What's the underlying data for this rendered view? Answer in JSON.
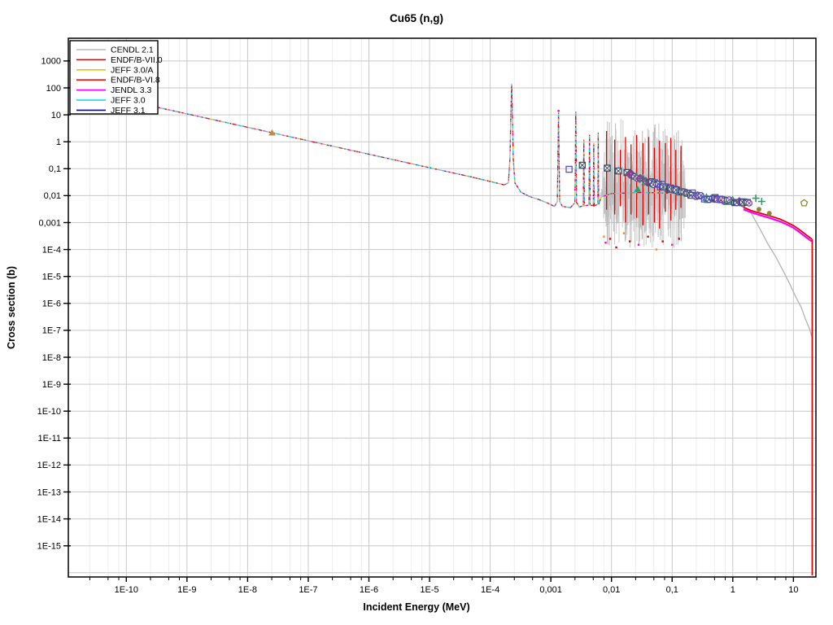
{
  "chart_data": {
    "type": "line",
    "title": "Cu65 (n,g)",
    "title_color": "#0000cc",
    "xlabel": "Incident Energy (MeV)",
    "ylabel": "Cross section (b)",
    "x_scale": "log",
    "y_scale": "log",
    "x_range": [
      1.1e-11,
      23.5
    ],
    "y_range": [
      7e-17,
      7000
    ],
    "grid": "on",
    "legend_position": "top-left",
    "x_ticks": [
      {
        "label": "1E-10",
        "value": 1e-10
      },
      {
        "label": "1E-9",
        "value": 1e-09
      },
      {
        "label": "1E-8",
        "value": 1e-08
      },
      {
        "label": "1E-7",
        "value": 1e-07
      },
      {
        "label": "1E-6",
        "value": 1e-06
      },
      {
        "label": "1E-5",
        "value": 1e-05
      },
      {
        "label": "1E-4",
        "value": 0.0001
      },
      {
        "label": "0,001",
        "value": 0.001
      },
      {
        "label": "0,01",
        "value": 0.01
      },
      {
        "label": "0,1",
        "value": 0.1
      },
      {
        "label": "1",
        "value": 1
      },
      {
        "label": "10",
        "value": 10
      }
    ],
    "y_ticks": [
      {
        "label": "1000",
        "value": 1000
      },
      {
        "label": "100",
        "value": 100
      },
      {
        "label": "10",
        "value": 10
      },
      {
        "label": "1",
        "value": 1
      },
      {
        "label": "0,1",
        "value": 0.1
      },
      {
        "label": "0,01",
        "value": 0.01
      },
      {
        "label": "0,001",
        "value": 0.001
      },
      {
        "label": "1E-4",
        "value": 0.0001
      },
      {
        "label": "1E-5",
        "value": 1e-05
      },
      {
        "label": "1E-6",
        "value": 1e-06
      },
      {
        "label": "1E-7",
        "value": 1e-07
      },
      {
        "label": "1E-8",
        "value": 1e-08
      },
      {
        "label": "1E-9",
        "value": 1e-09
      },
      {
        "label": "1E-10",
        "value": 1e-10
      },
      {
        "label": "1E-11",
        "value": 1e-11
      },
      {
        "label": "1E-12",
        "value": 1e-12
      },
      {
        "label": "1E-13",
        "value": 1e-13
      },
      {
        "label": "1E-14",
        "value": 1e-14
      },
      {
        "label": "1E-15",
        "value": 1e-15
      }
    ],
    "minor_multipliers": [
      2.5,
      5,
      7.5
    ],
    "series": [
      {
        "name": "CENDL 2.1",
        "color": "#b8b8b8"
      },
      {
        "name": "ENDF/B-VII.0",
        "color": "#e60000"
      },
      {
        "name": "JEFF 3.0/A",
        "color": "#ffb800"
      },
      {
        "name": "ENDF/B-VI.8",
        "color": "#f01010"
      },
      {
        "name": "JENDL 3.3",
        "color": "#ff00ff"
      },
      {
        "name": "JEFF 3.0",
        "color": "#00dcdc"
      },
      {
        "name": "JEFF 3.1",
        "color": "#0000cd"
      }
    ],
    "smooth_curve": {
      "color": "#b4b4b4",
      "points": [
        [
          1.1e-11,
          104
        ],
        [
          1e-10,
          34.5
        ],
        [
          1e-09,
          10.9
        ],
        [
          1e-08,
          3.45
        ],
        [
          2.53e-08,
          2.17
        ],
        [
          1e-07,
          1.09
        ],
        [
          1e-06,
          0.345
        ],
        [
          1e-05,
          0.109
        ],
        [
          5e-05,
          0.0487
        ],
        [
          0.00012,
          0.0305
        ],
        [
          0.00017,
          0.025
        ],
        [
          0.0002,
          0.03
        ],
        [
          0.000212,
          0.25
        ],
        [
          0.00022,
          15
        ],
        [
          0.000226,
          140
        ],
        [
          0.000232,
          15
        ],
        [
          0.00024,
          0.25
        ],
        [
          0.000255,
          0.03
        ],
        [
          0.00032,
          0.0135
        ],
        [
          0.00045,
          0.0092
        ],
        [
          0.00065,
          0.007
        ],
        [
          0.0009,
          0.0052
        ],
        [
          0.00115,
          0.004
        ],
        [
          0.00128,
          0.006
        ],
        [
          0.00134,
          12
        ],
        [
          0.0014,
          0.006
        ],
        [
          0.00155,
          0.004
        ],
        [
          0.0021,
          0.0036
        ],
        [
          0.0025,
          0.0055
        ],
        [
          0.00258,
          13
        ],
        [
          0.00266,
          0.0055
        ],
        [
          0.00295,
          0.0038
        ],
        [
          0.00342,
          0.0042
        ],
        [
          0.0035,
          1.2
        ],
        [
          0.00358,
          0.0042
        ],
        [
          0.00425,
          0.0045
        ],
        [
          0.00435,
          1.8
        ],
        [
          0.00445,
          0.0045
        ],
        [
          0.005,
          0.0042
        ],
        [
          0.0051,
          0.9
        ],
        [
          0.0052,
          0.0042
        ],
        [
          0.00595,
          0.0048
        ],
        [
          0.00605,
          2.2
        ],
        [
          0.00615,
          0.0048
        ],
        [
          0.0068,
          0.009
        ],
        [
          0.01,
          0.012
        ],
        [
          0.03,
          0.013
        ],
        [
          0.08,
          0.0125
        ],
        [
          0.16,
          0.0122
        ],
        [
          0.25,
          0.01
        ],
        [
          0.4,
          0.0082
        ],
        [
          0.7,
          0.0063
        ],
        [
          1.0,
          0.0051
        ],
        [
          1.5,
          0.0038
        ],
        [
          2.0,
          0.0028
        ]
      ]
    },
    "overlay_dashes": [
      {
        "color": "#e60000",
        "width": 1.2,
        "dash": "2 9",
        "offset": 0
      },
      {
        "color": "#ffb800",
        "width": 1.2,
        "dash": "2 12",
        "offset": 3
      },
      {
        "color": "#ff00ff",
        "width": 1.2,
        "dash": "2 10",
        "offset": 6
      },
      {
        "color": "#00dcdc",
        "width": 1.2,
        "dash": "3 13",
        "offset": 9
      },
      {
        "color": "#0000cd",
        "width": 1.0,
        "dash": "1 17",
        "offset": 12
      },
      {
        "color": "#e60000",
        "width": 1.2,
        "dash": "2 15",
        "offset": 14
      }
    ],
    "resonance_forest": {
      "e_min": 0.0068,
      "e_max": 0.165,
      "count": 215,
      "center_sigma_left": 0.0125,
      "center_sigma_right": 0.011,
      "color": "#c3c3c3",
      "color2": "#b0b0b0",
      "seed": 7
    },
    "red_spikes": [
      [
        0.0083,
        2.5,
        0.003
      ],
      [
        0.0113,
        1.2,
        0.002
      ],
      [
        0.014,
        0.5,
        0.004
      ],
      [
        0.017,
        1.5,
        0.001
      ],
      [
        0.021,
        0.8,
        0.002
      ],
      [
        0.026,
        1.8,
        0.0015
      ],
      [
        0.033,
        0.9,
        0.0008
      ],
      [
        0.041,
        1.5,
        0.002
      ],
      [
        0.051,
        0.6,
        0.001
      ],
      [
        0.062,
        1.1,
        0.0006
      ],
      [
        0.077,
        0.9,
        0.0025
      ],
      [
        0.095,
        1.4,
        0.0012
      ],
      [
        0.115,
        0.5,
        0.003
      ],
      [
        0.14,
        0.7,
        0.0035
      ]
    ],
    "forest_dots": [
      [
        0.0075,
        0.0003,
        "#ff9000"
      ],
      [
        0.008,
        0.00018,
        "#ff00ff"
      ],
      [
        0.0095,
        0.00025,
        "#e60000"
      ],
      [
        0.012,
        0.00012,
        "#e60000"
      ],
      [
        0.016,
        0.0004,
        "#ff9000"
      ],
      [
        0.02,
        0.0002,
        "#e60000"
      ],
      [
        0.028,
        0.00015,
        "#ff00ff"
      ],
      [
        0.04,
        0.0003,
        "#e60000"
      ],
      [
        0.055,
        0.0001,
        "#ff9000"
      ],
      [
        0.07,
        0.0002,
        "#e60000"
      ],
      [
        0.1,
        0.00015,
        "#ff00ff"
      ],
      [
        0.13,
        0.00025,
        "#e60000"
      ]
    ],
    "cendl_tail": {
      "color": "#b4b4b4",
      "points": [
        [
          1.7,
          0.0031
        ],
        [
          2.0,
          0.0023
        ],
        [
          2.75,
          0.00063
        ],
        [
          3.8,
          0.00016
        ],
        [
          5.2,
          5e-05
        ],
        [
          7,
          1.4e-05
        ],
        [
          9,
          4.5e-06
        ],
        [
          11,
          1.7e-06
        ],
        [
          13.5,
          7e-07
        ],
        [
          16,
          2.4e-07
        ],
        [
          18.5,
          1.1e-07
        ],
        [
          20.5,
          5e-08
        ]
      ]
    },
    "magenta_tail": {
      "color": "#ff00ff",
      "points": [
        [
          1.5,
          0.0031
        ],
        [
          2,
          0.0024
        ],
        [
          3,
          0.0018
        ],
        [
          4,
          0.0015
        ],
        [
          6,
          0.0011
        ],
        [
          8,
          0.00083
        ],
        [
          10,
          0.00064
        ],
        [
          13,
          0.00042
        ],
        [
          16,
          0.00029
        ],
        [
          19,
          0.00022
        ],
        [
          20.3,
          0.0002
        ]
      ]
    },
    "red_tail": {
      "color": "#e60000",
      "points": [
        [
          1.5,
          0.0037
        ],
        [
          2,
          0.0028
        ],
        [
          3,
          0.00215
        ],
        [
          4,
          0.0018
        ],
        [
          6,
          0.00135
        ],
        [
          8,
          0.001
        ],
        [
          10,
          0.00078
        ],
        [
          13,
          0.00052
        ],
        [
          16,
          0.00036
        ],
        [
          19,
          0.00027
        ],
        [
          20.4,
          0.00024
        ]
      ],
      "drop_energy": 20.4,
      "drop_bottom_sigma": 8e-17
    },
    "experimental": {
      "singles": [
        [
          2.53e-08,
          2.17,
          "tri-fill",
          "#b5914a"
        ],
        [
          0.002,
          0.095,
          "sq-open",
          "#5b4fc8"
        ],
        [
          0.0033,
          0.135,
          "sq-x",
          "#3f4e63"
        ],
        [
          0.0085,
          0.105,
          "sq-x",
          "#3f4e63"
        ],
        [
          0.013,
          0.082,
          "sq-x",
          "#3f4e63"
        ],
        [
          0.018,
          0.072,
          "sq-x",
          "#3f4e63"
        ],
        [
          0.021,
          0.058,
          "circ-x",
          "#7b4fa6"
        ],
        [
          0.027,
          0.0175,
          "tri-fill",
          "#2e9e6b"
        ],
        [
          2.4,
          0.008,
          "plus",
          "#2e9e6b"
        ],
        [
          3.0,
          0.0061,
          "plus",
          "#2e9e6b"
        ],
        [
          2.7,
          0.0031,
          "circ-fill",
          "#8a8a2e"
        ],
        [
          4.0,
          0.0022,
          "circ-fill",
          "#8a8a2e"
        ],
        [
          15,
          0.0053,
          "pent-open",
          "#8a8a2e"
        ],
        [
          0.00134,
          14,
          "dot",
          "#ff00ff"
        ]
      ],
      "band": {
        "e_min": 0.02,
        "e_max": 1.85,
        "count": 72,
        "seed": 11,
        "jitter_logx": 0.055,
        "jitter_logy": 0.12,
        "centerline": [
          [
            0.02,
            0.06
          ],
          [
            0.05,
            0.028
          ],
          [
            0.09,
            0.019
          ],
          [
            0.16,
            0.013
          ],
          [
            0.35,
            0.0085
          ],
          [
            0.6,
            0.007
          ],
          [
            1.2,
            0.006
          ],
          [
            1.85,
            0.0049
          ]
        ],
        "styles": [
          {
            "type": "sq-x",
            "color": "#3f4e63"
          },
          {
            "type": "circ-x",
            "color": "#7b4fa6"
          },
          {
            "type": "sq-open",
            "color": "#5b4fc8"
          },
          {
            "type": "diamond-x",
            "color": "#8a3f8f"
          },
          {
            "type": "tri-open",
            "color": "#2e8b74"
          },
          {
            "type": "circ-x",
            "color": "#44518a"
          }
        ]
      }
    }
  },
  "legend": {
    "items": [
      {
        "label": "CENDL 2.1",
        "color": "#b8b8b8"
      },
      {
        "label": "ENDF/B-VII.0",
        "color": "#e60000"
      },
      {
        "label": "JEFF 3.0/A",
        "color": "#ffb800"
      },
      {
        "label": "ENDF/B-VI.8",
        "color": "#f01010"
      },
      {
        "label": "JENDL 3.3",
        "color": "#ff00ff"
      },
      {
        "label": "JEFF 3.0",
        "color": "#00dcdc"
      },
      {
        "label": "JEFF 3.1",
        "color": "#0000cd"
      }
    ]
  }
}
